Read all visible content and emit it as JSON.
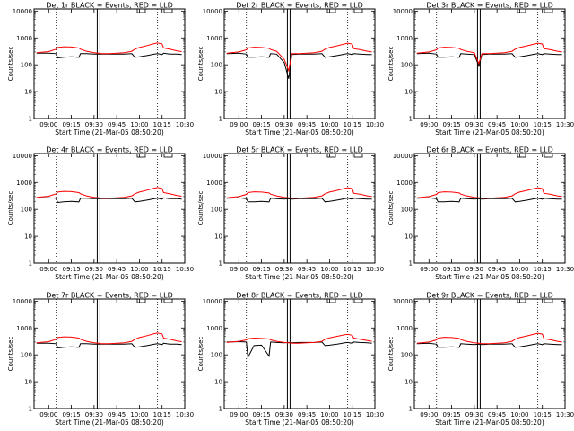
{
  "chart_data": {
    "type": "line",
    "layout": "3x3 grid",
    "colors": {
      "events": "#000000",
      "lld": "#ff0000",
      "background": "#ffffff"
    },
    "xlabel": "Start Time (21-Mar-05 08:50:20)",
    "ylabel": "Counts/sec",
    "x_ticks": [
      "09:00",
      "09:15",
      "09:30",
      "09:45",
      "10:00",
      "10:15",
      "10:30"
    ],
    "y_ticks": [
      "1",
      "10",
      "100",
      "1000",
      "10000"
    ],
    "y_scale": "log",
    "ylim": [
      1,
      12000
    ],
    "xlim": [
      "08:50:20",
      "10:30"
    ],
    "x_key": [
      "08:52",
      "09:00",
      "09:05",
      "09:06",
      "09:10",
      "09:15",
      "09:20",
      "09:21",
      "09:25",
      "09:30",
      "09:33",
      "09:35",
      "09:40",
      "09:45",
      "09:50",
      "09:55",
      "09:57",
      "10:00",
      "10:05",
      "10:10",
      "10:12",
      "10:15",
      "10:16",
      "10:20",
      "10:25",
      "10:28"
    ],
    "vertical_markers": [
      "09:05",
      "09:33",
      "10:12"
    ],
    "panels": [
      {
        "title": "Det 1r BLACK = Events, RED = LLD",
        "events": [
          270,
          270,
          260,
          180,
          190,
          200,
          190,
          260,
          260,
          250,
          250,
          250,
          250,
          250,
          250,
          260,
          190,
          200,
          220,
          250,
          260,
          240,
          270,
          250,
          250,
          240
        ],
        "lld": [
          280,
          310,
          380,
          440,
          470,
          460,
          420,
          380,
          320,
          280,
          270,
          260,
          260,
          270,
          280,
          320,
          380,
          440,
          520,
          620,
          650,
          600,
          420,
          380,
          330,
          310
        ]
      },
      {
        "title": "Det 2r BLACK = Events, RED = LLD",
        "events": [
          260,
          270,
          250,
          190,
          190,
          200,
          190,
          260,
          250,
          120,
          30,
          240,
          250,
          250,
          250,
          260,
          190,
          200,
          220,
          250,
          260,
          240,
          260,
          250,
          240,
          240
        ],
        "lld": [
          270,
          300,
          360,
          420,
          450,
          440,
          410,
          370,
          320,
          160,
          60,
          260,
          260,
          270,
          280,
          320,
          380,
          440,
          510,
          600,
          640,
          590,
          400,
          370,
          320,
          300
        ]
      },
      {
        "title": "Det 3r BLACK = Events, RED = LLD",
        "events": [
          260,
          270,
          250,
          190,
          190,
          200,
          190,
          260,
          250,
          240,
          90,
          240,
          250,
          250,
          250,
          260,
          190,
          200,
          220,
          250,
          260,
          240,
          260,
          250,
          240,
          240
        ],
        "lld": [
          270,
          300,
          360,
          420,
          450,
          440,
          410,
          370,
          320,
          280,
          110,
          260,
          260,
          270,
          280,
          320,
          380,
          440,
          510,
          600,
          640,
          590,
          400,
          370,
          320,
          300
        ]
      },
      {
        "title": "Det 4r BLACK = Events, RED = LLD",
        "events": [
          270,
          270,
          260,
          180,
          190,
          200,
          190,
          260,
          260,
          250,
          250,
          250,
          250,
          250,
          250,
          260,
          190,
          200,
          220,
          250,
          260,
          240,
          270,
          250,
          250,
          240
        ],
        "lld": [
          280,
          310,
          380,
          440,
          470,
          460,
          420,
          380,
          320,
          280,
          270,
          260,
          260,
          270,
          280,
          320,
          380,
          440,
          520,
          620,
          650,
          600,
          420,
          380,
          330,
          310
        ]
      },
      {
        "title": "Det 5r BLACK = Events, RED = LLD",
        "events": [
          260,
          270,
          250,
          190,
          190,
          200,
          190,
          260,
          250,
          240,
          250,
          240,
          250,
          250,
          250,
          260,
          190,
          200,
          220,
          250,
          260,
          240,
          260,
          250,
          240,
          240
        ],
        "lld": [
          270,
          300,
          360,
          420,
          450,
          440,
          410,
          370,
          320,
          280,
          270,
          260,
          260,
          270,
          280,
          320,
          380,
          440,
          510,
          600,
          640,
          590,
          400,
          370,
          320,
          300
        ]
      },
      {
        "title": "Det 6r BLACK = Events, RED = LLD",
        "events": [
          260,
          270,
          250,
          190,
          190,
          200,
          190,
          260,
          250,
          240,
          250,
          240,
          250,
          250,
          250,
          260,
          190,
          200,
          220,
          250,
          260,
          240,
          260,
          250,
          240,
          240
        ],
        "lld": [
          270,
          300,
          360,
          420,
          450,
          440,
          410,
          370,
          320,
          280,
          270,
          260,
          260,
          270,
          280,
          320,
          380,
          440,
          510,
          600,
          640,
          590,
          400,
          370,
          320,
          300
        ]
      },
      {
        "title": "Det 7r BLACK = Events, RED = LLD",
        "events": [
          270,
          270,
          260,
          180,
          190,
          200,
          190,
          260,
          260,
          250,
          250,
          250,
          250,
          250,
          250,
          260,
          190,
          200,
          220,
          250,
          260,
          240,
          270,
          250,
          250,
          240
        ],
        "lld": [
          280,
          310,
          380,
          440,
          470,
          460,
          420,
          380,
          320,
          280,
          270,
          260,
          260,
          270,
          280,
          320,
          380,
          440,
          520,
          620,
          650,
          600,
          420,
          380,
          330,
          310
        ]
      },
      {
        "title": "Det 8r BLACK = Events, RED = LLD",
        "events": [
          300,
          310,
          300,
          80,
          220,
          230,
          90,
          300,
          290,
          280,
          290,
          280,
          290,
          290,
          290,
          300,
          220,
          230,
          250,
          280,
          290,
          270,
          300,
          290,
          280,
          270
        ],
        "lld": [
          290,
          320,
          360,
          400,
          420,
          410,
          390,
          360,
          320,
          290,
          280,
          270,
          270,
          280,
          290,
          320,
          380,
          430,
          490,
          560,
          580,
          540,
          420,
          380,
          340,
          320
        ]
      },
      {
        "title": "Det 9r BLACK = Events, RED = LLD",
        "events": [
          260,
          270,
          250,
          190,
          190,
          200,
          190,
          260,
          250,
          240,
          250,
          240,
          250,
          250,
          250,
          260,
          190,
          200,
          220,
          250,
          260,
          240,
          260,
          250,
          240,
          240
        ],
        "lld": [
          270,
          300,
          360,
          420,
          450,
          440,
          410,
          370,
          320,
          280,
          270,
          260,
          260,
          270,
          280,
          320,
          380,
          440,
          510,
          600,
          640,
          590,
          400,
          370,
          320,
          300
        ]
      }
    ]
  }
}
